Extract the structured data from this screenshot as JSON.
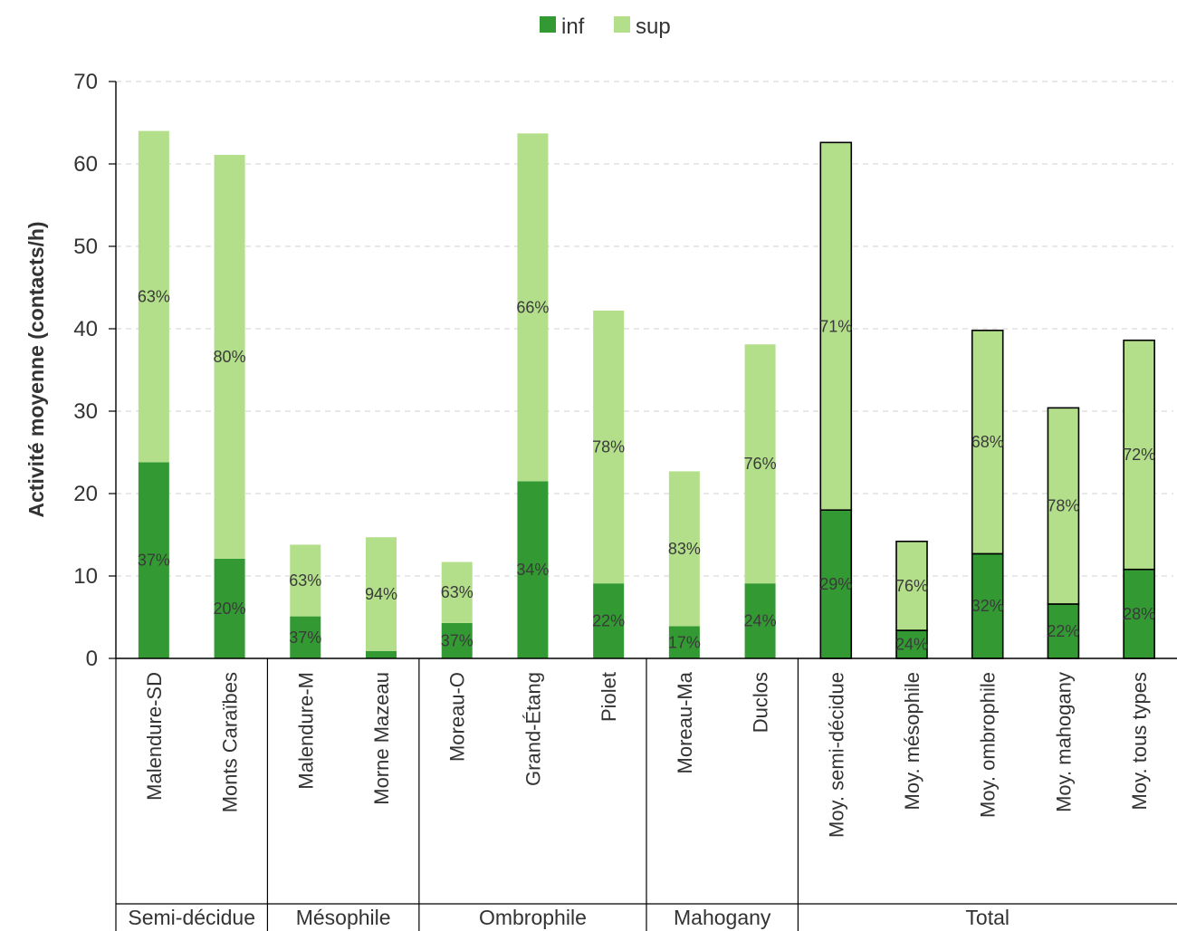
{
  "chart_data": {
    "type": "bar",
    "stacked": true,
    "title": "",
    "xlabel": "",
    "ylabel": "Activité moyenne (contacts/h)",
    "ylim": [
      0,
      70
    ],
    "yticks": [
      0,
      10,
      20,
      30,
      40,
      50,
      60,
      70
    ],
    "grid": "horizontal-dashed",
    "legend_position": "top-center",
    "categories": [
      "Malendure-SD",
      "Monts Caraïbes",
      "Malendure-M",
      "Morne Mazeau",
      "Moreau-O",
      "Grand-Étang",
      "Piolet",
      "Moreau-Ma",
      "Duclos",
      "Moy. semi-décidue",
      "Moy. mésophile",
      "Moy. ombrophile",
      "Moy. mahogany",
      "Moy. tous types"
    ],
    "groups": [
      {
        "label": "Semi-décidue",
        "start": 0,
        "end": 1
      },
      {
        "label": "Mésophile",
        "start": 2,
        "end": 3
      },
      {
        "label": "Ombrophile",
        "start": 4,
        "end": 6
      },
      {
        "label": "Mahogany",
        "start": 7,
        "end": 8
      },
      {
        "label": "Total",
        "start": 9,
        "end": 13
      }
    ],
    "outlined_categories": [
      9,
      10,
      11,
      12,
      13
    ],
    "series": [
      {
        "name": "inf",
        "color": "#339933",
        "values": [
          23.8,
          12.1,
          5.1,
          0.9,
          4.3,
          21.5,
          9.1,
          3.9,
          9.1,
          18.0,
          3.4,
          12.7,
          6.6,
          10.8
        ],
        "labels": [
          "37%",
          "20%",
          "37%",
          "",
          "37%",
          "34%",
          "22%",
          "17%",
          "24%",
          "29%",
          "24%",
          "32%",
          "22%",
          "28%"
        ]
      },
      {
        "name": "sup",
        "color": "#b3df8a",
        "values": [
          40.2,
          49.0,
          8.7,
          13.8,
          7.4,
          42.2,
          33.1,
          18.8,
          29.0,
          44.6,
          10.8,
          27.1,
          23.8,
          27.8
        ],
        "labels": [
          "63%",
          "80%",
          "63%",
          "94%",
          "63%",
          "66%",
          "78%",
          "83%",
          "76%",
          "71%",
          "76%",
          "68%",
          "78%",
          "72%"
        ]
      }
    ]
  }
}
